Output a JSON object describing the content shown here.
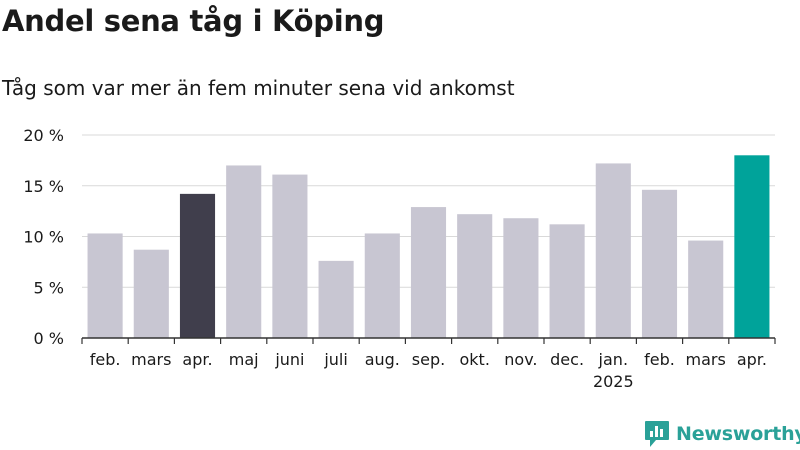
{
  "title": "Andel sena tåg i Köping",
  "subtitle": "Tåg som var mer än fem minuter sena vid ankomst",
  "brand": "Newsworthy",
  "colors": {
    "bar_default": "#c8c6d2",
    "bar_highlight_dark": "#403e4c",
    "bar_highlight_accent": "#00a39a",
    "grid": "#d9d9d9",
    "axis": "#333333",
    "text": "#1a1a1a",
    "brand": "#2aa198"
  },
  "chart_data": {
    "type": "bar",
    "categories": [
      "feb.",
      "mars",
      "apr.",
      "maj",
      "juni",
      "juli",
      "aug.",
      "sep.",
      "okt.",
      "nov.",
      "dec.",
      "jan.",
      "feb.",
      "mars",
      "apr."
    ],
    "year_labels": [
      {
        "index": 11,
        "label": "2025"
      }
    ],
    "values": [
      10.3,
      8.7,
      14.2,
      17.0,
      16.1,
      7.6,
      10.3,
      12.9,
      12.2,
      11.8,
      11.2,
      17.2,
      14.6,
      9.6,
      18.0
    ],
    "highlights": [
      {
        "index": 2,
        "color": "#403e4c"
      },
      {
        "index": 14,
        "color": "#00a39a"
      }
    ],
    "y_ticks": [
      "0 %",
      "5 %",
      "10 %",
      "15 %",
      "20 %"
    ],
    "y_tick_values": [
      0,
      5,
      10,
      15,
      20
    ],
    "ylim": [
      0,
      20
    ],
    "xlabel": "",
    "ylabel": "",
    "grid": true
  }
}
